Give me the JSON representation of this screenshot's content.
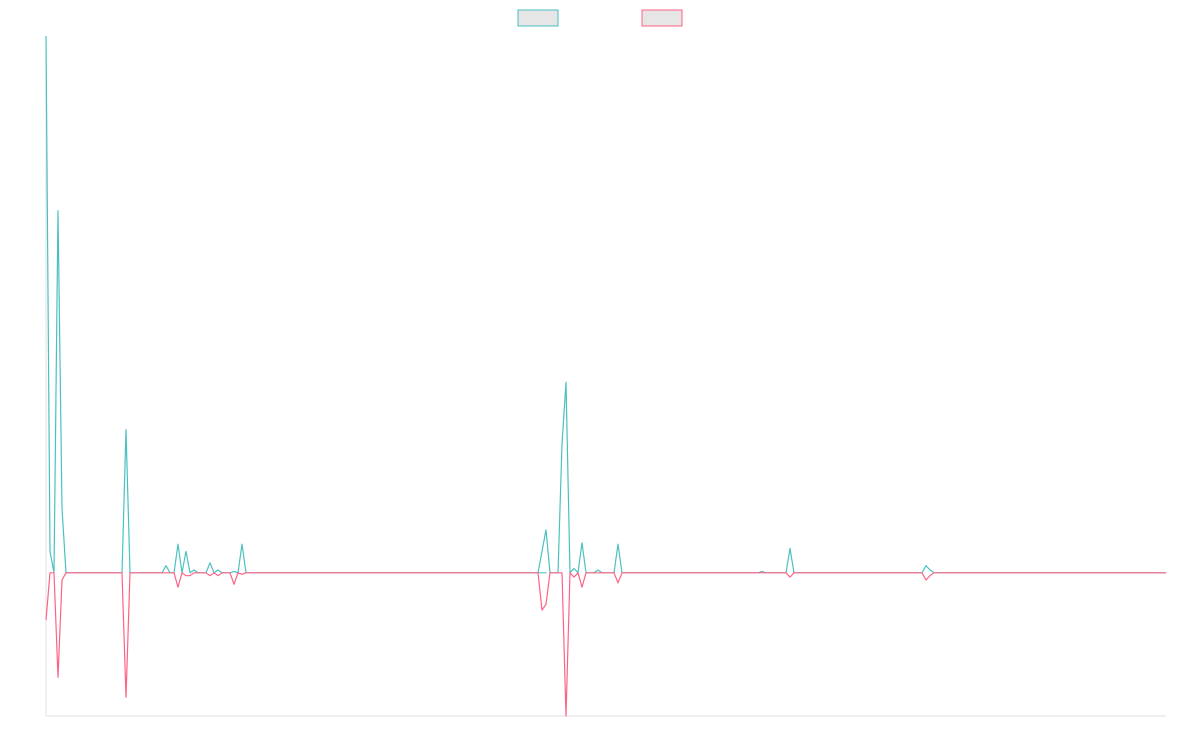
{
  "chart_data": {
    "type": "line",
    "title": "",
    "xlabel": "",
    "ylabel": "",
    "grid": false,
    "legend": "top-center",
    "legend_swatch_fill": "#e6e6e6",
    "ylim": [
      -1,
      3.75
    ],
    "series": [
      {
        "name": "",
        "color": "#4bc0c0",
        "points": [
          [
            0,
            3.75
          ],
          [
            1,
            0.15
          ],
          [
            2,
            0
          ],
          [
            3,
            2.53
          ],
          [
            4,
            0.45
          ],
          [
            5,
            0
          ],
          [
            6,
            0
          ],
          [
            7,
            0
          ],
          [
            8,
            0
          ],
          [
            9,
            0
          ],
          [
            10,
            0
          ],
          [
            11,
            0
          ],
          [
            12,
            0
          ],
          [
            13,
            0
          ],
          [
            14,
            0
          ],
          [
            15,
            0
          ],
          [
            16,
            0
          ],
          [
            17,
            0
          ],
          [
            18,
            0
          ],
          [
            19,
            0
          ],
          [
            20,
            1.0
          ],
          [
            21,
            0
          ],
          [
            22,
            0
          ],
          [
            23,
            0
          ],
          [
            24,
            0
          ],
          [
            25,
            0
          ],
          [
            26,
            0
          ],
          [
            27,
            0
          ],
          [
            28,
            0
          ],
          [
            29,
            0
          ],
          [
            30,
            0.05
          ],
          [
            31,
            0
          ],
          [
            32,
            0
          ],
          [
            33,
            0.2
          ],
          [
            34,
            0
          ],
          [
            35,
            0.15
          ],
          [
            36,
            0
          ],
          [
            37,
            0.02
          ],
          [
            38,
            0
          ],
          [
            39,
            0
          ],
          [
            40,
            0
          ],
          [
            41,
            0.07
          ],
          [
            42,
            0
          ],
          [
            43,
            0.02
          ],
          [
            44,
            0
          ],
          [
            45,
            0
          ],
          [
            46,
            0
          ],
          [
            47,
            0.01
          ],
          [
            48,
            0
          ],
          [
            49,
            0.2
          ],
          [
            50,
            0
          ],
          [
            120,
            0
          ],
          [
            121,
            0
          ],
          [
            122,
            0
          ],
          [
            123,
            0
          ],
          [
            124,
            0
          ],
          [
            125,
            0
          ],
          [
            123,
            0
          ],
          [
            125,
            0.3
          ],
          [
            126,
            0
          ],
          [
            128,
            0
          ],
          [
            129,
            0.9
          ],
          [
            130,
            1.33
          ],
          [
            131,
            0
          ],
          [
            132,
            0.03
          ],
          [
            133,
            0
          ],
          [
            134,
            0.21
          ],
          [
            135,
            0
          ],
          [
            136,
            0
          ],
          [
            137,
            0
          ],
          [
            138,
            0.02
          ],
          [
            139,
            0
          ],
          [
            140,
            0
          ],
          [
            141,
            0
          ],
          [
            142,
            0
          ],
          [
            143,
            0.2
          ],
          [
            144,
            0
          ],
          [
            145,
            0
          ],
          [
            178,
            0
          ],
          [
            179,
            0.01
          ],
          [
            180,
            0
          ],
          [
            185,
            0
          ],
          [
            186,
            0.17
          ],
          [
            187,
            0
          ],
          [
            188,
            0
          ],
          [
            219,
            0
          ],
          [
            220,
            0.05
          ],
          [
            221,
            0.02
          ],
          [
            222,
            0
          ],
          [
            280,
            0
          ]
        ]
      },
      {
        "name": "",
        "color": "#ff6384",
        "points": [
          [
            0,
            -0.33
          ],
          [
            1,
            0
          ],
          [
            2,
            0
          ],
          [
            3,
            -0.73
          ],
          [
            4,
            -0.05
          ],
          [
            5,
            0
          ],
          [
            6,
            0
          ],
          [
            7,
            0
          ],
          [
            8,
            0
          ],
          [
            9,
            0
          ],
          [
            10,
            0
          ],
          [
            11,
            0
          ],
          [
            12,
            0
          ],
          [
            13,
            0
          ],
          [
            14,
            0
          ],
          [
            15,
            0
          ],
          [
            16,
            0
          ],
          [
            17,
            0
          ],
          [
            18,
            0
          ],
          [
            19,
            0
          ],
          [
            20,
            -0.87
          ],
          [
            21,
            0
          ],
          [
            22,
            0
          ],
          [
            23,
            0
          ],
          [
            24,
            0
          ],
          [
            25,
            0
          ],
          [
            26,
            0
          ],
          [
            27,
            0
          ],
          [
            28,
            0
          ],
          [
            29,
            0
          ],
          [
            30,
            0
          ],
          [
            31,
            0
          ],
          [
            32,
            0
          ],
          [
            33,
            -0.1
          ],
          [
            34,
            0
          ],
          [
            35,
            -0.02
          ],
          [
            36,
            -0.02
          ],
          [
            37,
            0
          ],
          [
            38,
            0
          ],
          [
            39,
            0
          ],
          [
            40,
            0
          ],
          [
            41,
            -0.02
          ],
          [
            42,
            0
          ],
          [
            43,
            -0.02
          ],
          [
            44,
            0
          ],
          [
            45,
            0
          ],
          [
            46,
            0
          ],
          [
            47,
            -0.08
          ],
          [
            48,
            0
          ],
          [
            49,
            -0.01
          ],
          [
            50,
            0
          ],
          [
            120,
            0
          ],
          [
            121,
            0
          ],
          [
            122,
            0
          ],
          [
            123,
            0
          ],
          [
            123,
            0
          ],
          [
            124,
            -0.26
          ],
          [
            125,
            -0.22
          ],
          [
            126,
            0
          ],
          [
            128,
            0
          ],
          [
            129,
            0
          ],
          [
            130,
            -1.0
          ],
          [
            131,
            0
          ],
          [
            132,
            -0.03
          ],
          [
            133,
            0
          ],
          [
            134,
            -0.1
          ],
          [
            135,
            0
          ],
          [
            136,
            0
          ],
          [
            137,
            0
          ],
          [
            138,
            0
          ],
          [
            139,
            0
          ],
          [
            140,
            0
          ],
          [
            141,
            0
          ],
          [
            142,
            0
          ],
          [
            143,
            -0.07
          ],
          [
            144,
            0
          ],
          [
            145,
            0
          ],
          [
            178,
            0
          ],
          [
            179,
            0
          ],
          [
            180,
            0
          ],
          [
            185,
            0
          ],
          [
            186,
            -0.03
          ],
          [
            187,
            0
          ],
          [
            188,
            0
          ],
          [
            219,
            0
          ],
          [
            220,
            -0.05
          ],
          [
            221,
            -0.02
          ],
          [
            222,
            0
          ],
          [
            280,
            0
          ]
        ]
      }
    ]
  }
}
